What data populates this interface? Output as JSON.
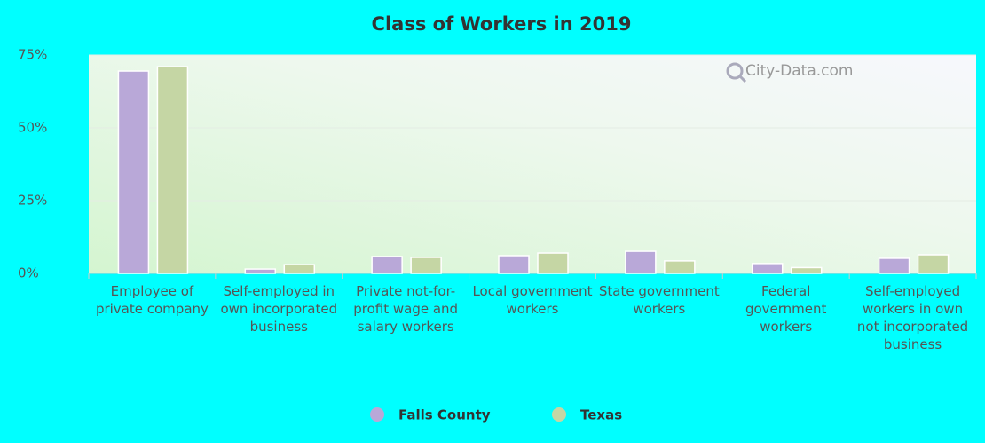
{
  "chart_data": {
    "type": "bar",
    "title": "Class of Workers in 2019",
    "watermark": "City-Data.com",
    "categories": [
      "Employee of private company",
      "Self-employed in own incorporated business",
      "Private not-for-profit wage and salary workers",
      "Local government workers",
      "State government workers",
      "Federal government workers",
      "Self-employed workers in own not incorporated business"
    ],
    "series": [
      {
        "name": "Falls County",
        "color": "#b9a8d8",
        "values": [
          69.5,
          1.5,
          5.8,
          6.1,
          7.6,
          3.4,
          5.2
        ]
      },
      {
        "name": "Texas",
        "color": "#c5d6a4",
        "values": [
          71,
          3,
          5.5,
          7,
          4.3,
          2,
          6.4
        ]
      }
    ],
    "ylim": [
      0,
      75
    ],
    "yticks": [
      {
        "value": 0,
        "label": "0%"
      },
      {
        "value": 25,
        "label": "25%"
      },
      {
        "value": 50,
        "label": "50%"
      },
      {
        "value": 75,
        "label": "75%"
      }
    ],
    "grid": true,
    "legend": "bottom"
  }
}
